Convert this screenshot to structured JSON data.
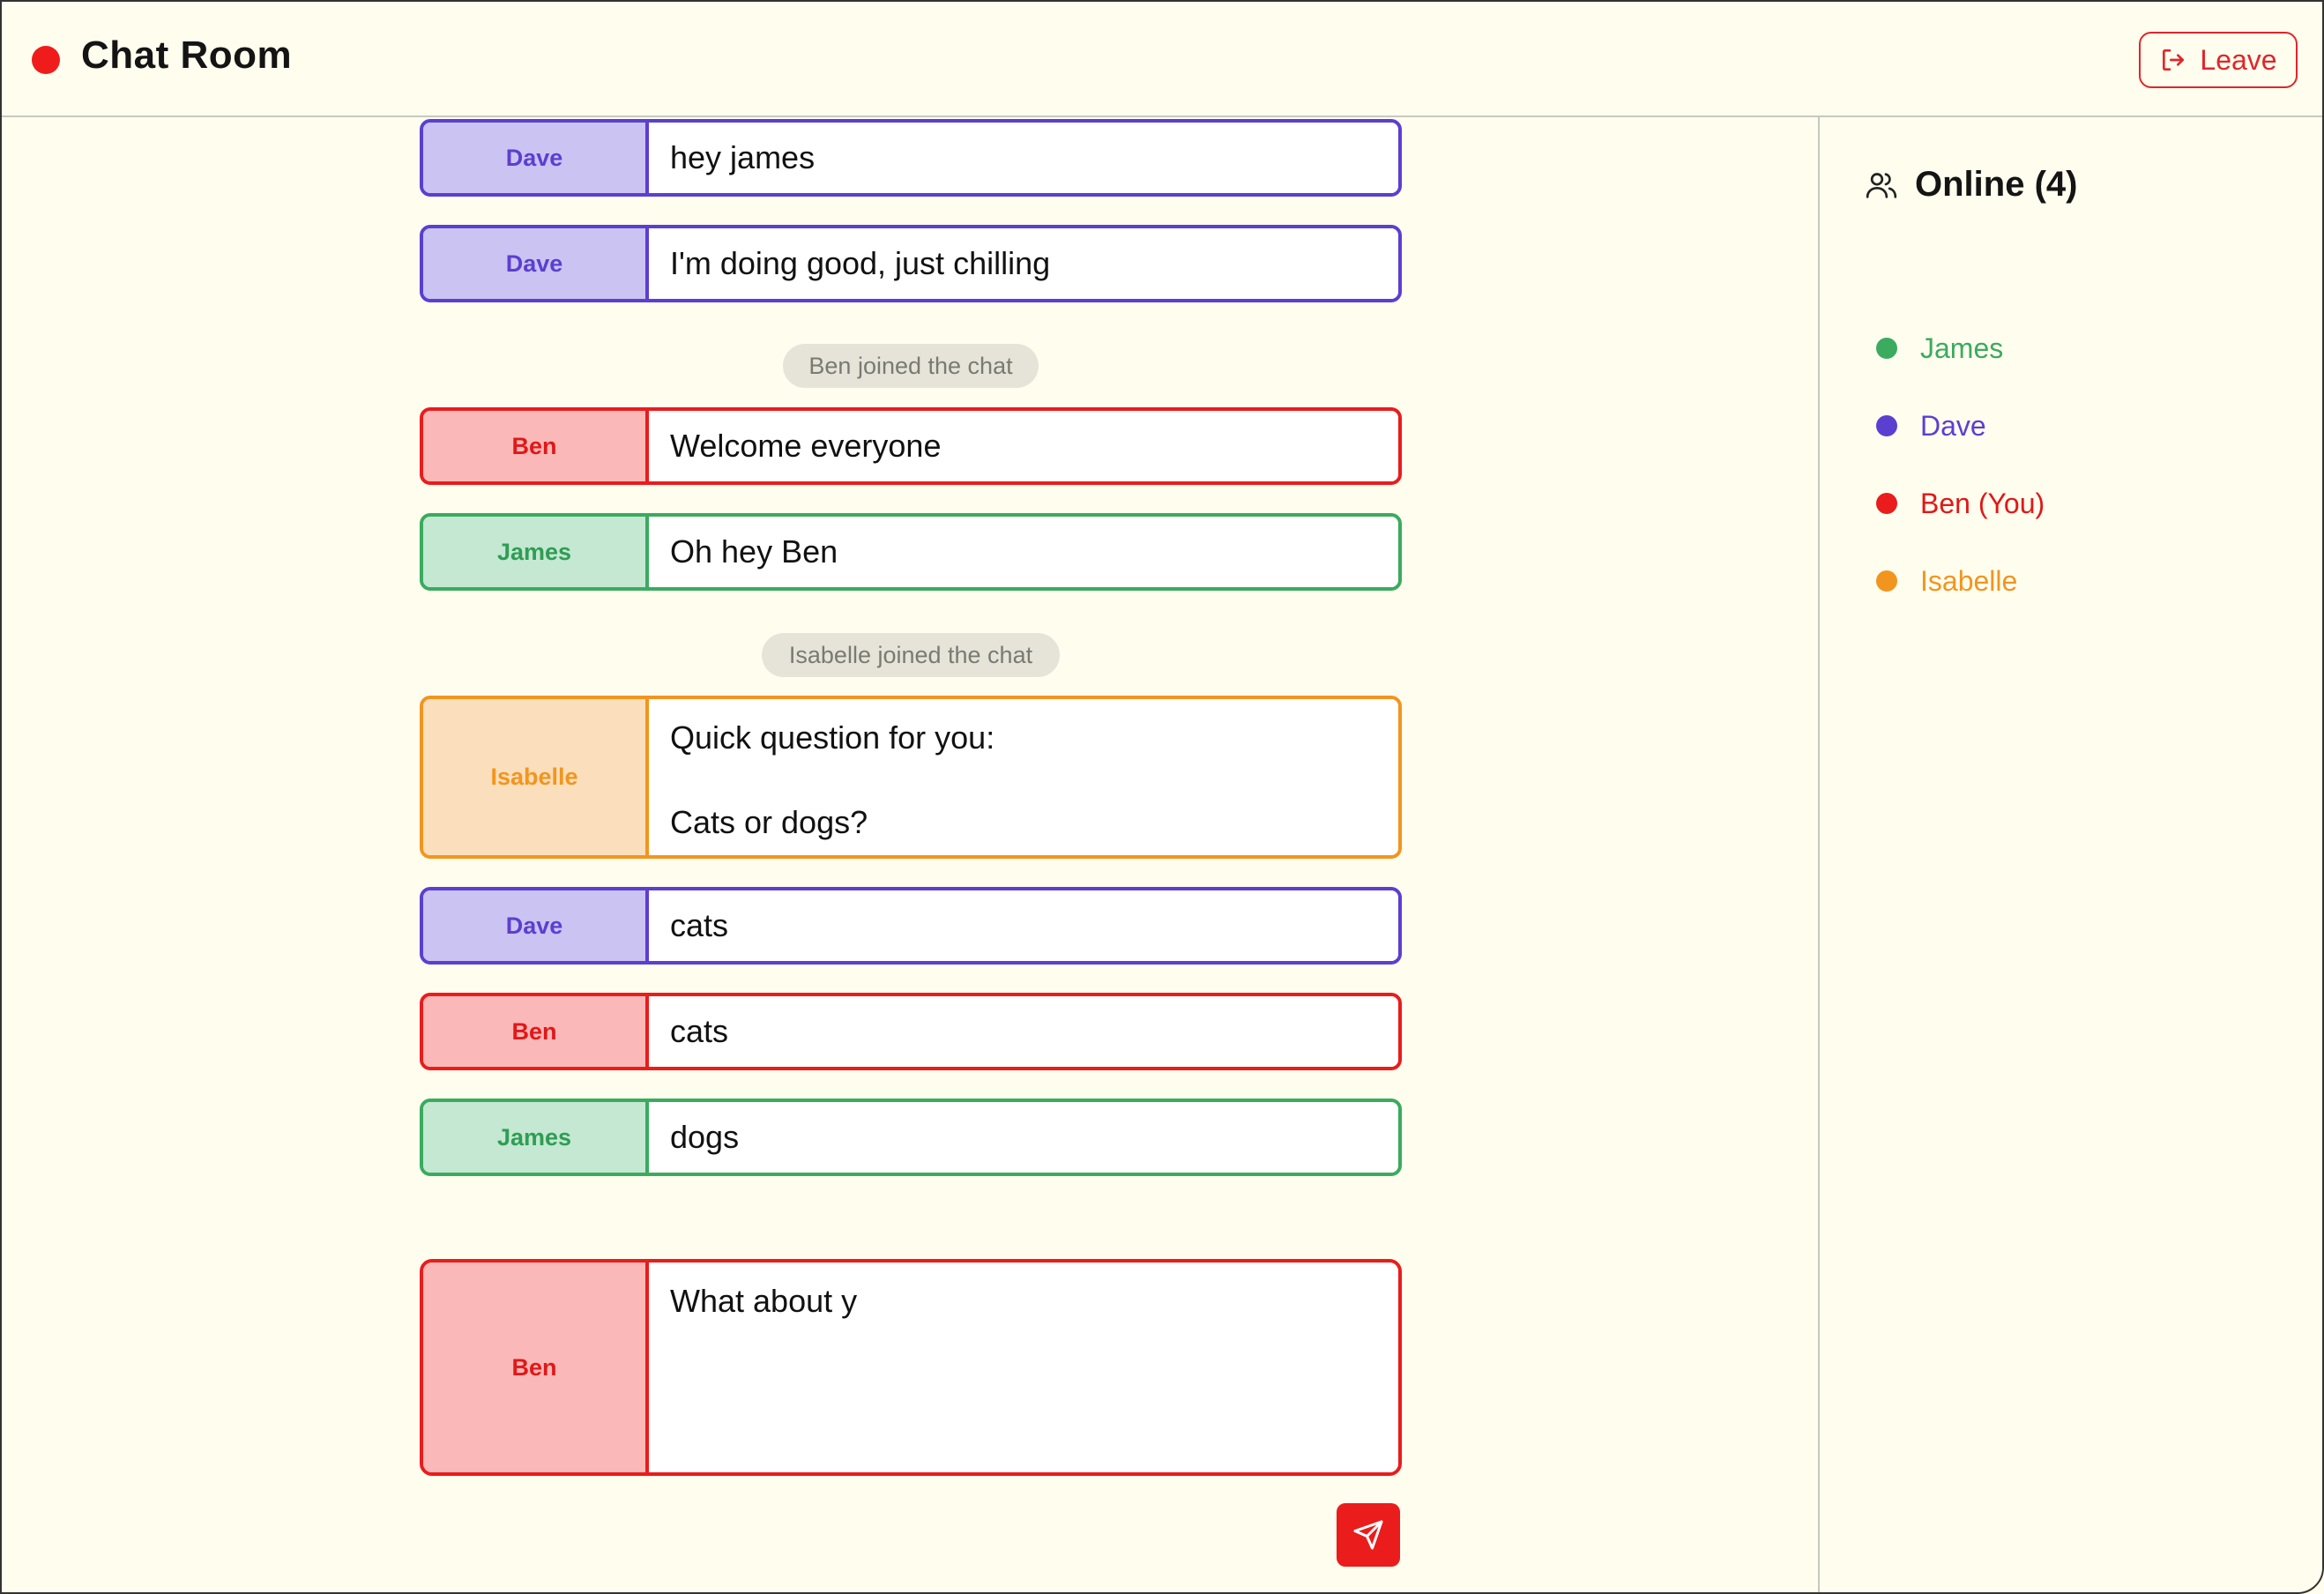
{
  "header": {
    "title": "Chat Room",
    "leave_label": "Leave",
    "status_color": "#f01c1c"
  },
  "sidebar": {
    "title": "Online (4)",
    "users": [
      {
        "name": "James",
        "color": "#3aab5f"
      },
      {
        "name": "Dave",
        "color": "#5b3fd1"
      },
      {
        "name": "Ben (You)",
        "color": "#ea1c1c"
      },
      {
        "name": "Isabelle",
        "color": "#f2951e"
      }
    ]
  },
  "messages": [
    {
      "sender": "Dave",
      "text": "hey james"
    },
    {
      "sender": "Dave",
      "text": "I'm doing good, just chilling"
    },
    {
      "system": "Ben joined the chat"
    },
    {
      "sender": "Ben",
      "text": "Welcome everyone"
    },
    {
      "sender": "James",
      "text": "Oh hey Ben"
    },
    {
      "system": "Isabelle joined the chat"
    },
    {
      "sender": "Isabelle",
      "text": "Quick question for you:\n\nCats or dogs?"
    },
    {
      "sender": "Dave",
      "text": "cats"
    },
    {
      "sender": "Ben",
      "text": "cats"
    },
    {
      "sender": "James",
      "text": "dogs"
    }
  ],
  "compose": {
    "sender": "Ben",
    "value": "What about y"
  },
  "colors": {
    "dave": "#5b3fd1",
    "ben": "#ea1c1c",
    "james": "#3aab5f",
    "isabelle": "#f2951e",
    "background": "#fffdee"
  }
}
